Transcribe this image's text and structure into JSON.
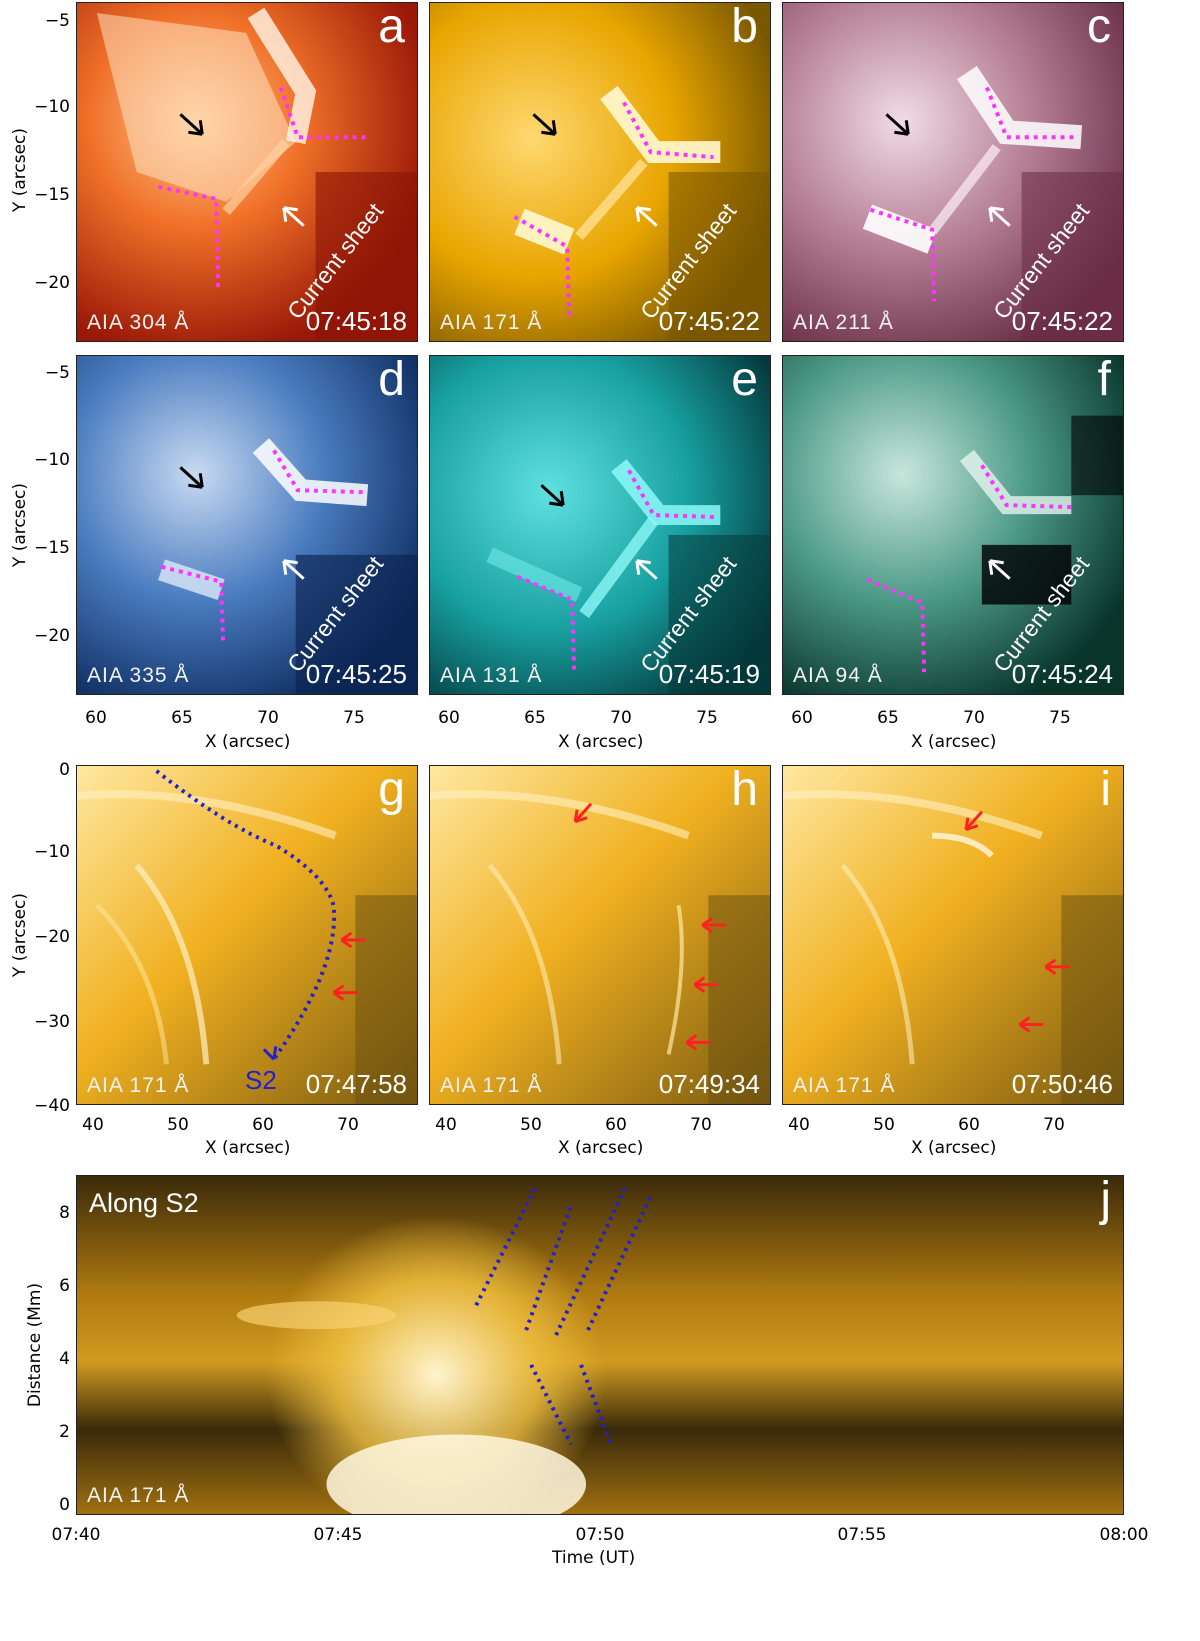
{
  "row1": {
    "ylabel": "Y (arcsec)",
    "yticks": [
      "−5",
      "−10",
      "−15",
      "−20"
    ],
    "panels": [
      {
        "letter": "a",
        "instrument": "AIA  304  Å",
        "time": "07:45:18",
        "annotation": "Current sheet",
        "base": "#c83214",
        "light": "#ffd7b0",
        "dark": "#7a1005"
      },
      {
        "letter": "b",
        "instrument": "AIA  171  Å",
        "time": "07:45:22",
        "annotation": "Current sheet",
        "base": "#d9a000",
        "light": "#ffe590",
        "dark": "#6e5000"
      },
      {
        "letter": "c",
        "instrument": "AIA  211  Å",
        "time": "07:45:22",
        "annotation": "Current sheet",
        "base": "#9c5a74",
        "light": "#f3e0e8",
        "dark": "#5a2a3c"
      }
    ]
  },
  "row2": {
    "ylabel": "Y (arcsec)",
    "yticks": [
      "−5",
      "−10",
      "−15",
      "−20"
    ],
    "xlabel": "X (arcsec)",
    "xticks": [
      "60",
      "65",
      "70",
      "75"
    ],
    "panels": [
      {
        "letter": "d",
        "instrument": "AIA  335  Å",
        "time": "07:45:25",
        "annotation": "Current sheet",
        "base": "#2a5ca8",
        "light": "#dce8f8",
        "dark": "#0a2450"
      },
      {
        "letter": "e",
        "instrument": "AIA  131  Å",
        "time": "07:45:19",
        "annotation": "Current sheet",
        "base": "#1aa6a6",
        "light": "#9af5f5",
        "dark": "#053c3c"
      },
      {
        "letter": "f",
        "instrument": "AIA  94  Å",
        "time": "07:45:24",
        "annotation": "Current sheet",
        "base": "#3c8c78",
        "light": "#d6efe6",
        "dark": "#02201a"
      }
    ]
  },
  "row3": {
    "ylabel": "Y (arcsec)",
    "yticks": [
      "0",
      "−10",
      "−20",
      "−30",
      "−40"
    ],
    "xlabel": "X (arcsec)",
    "xticks": [
      "40",
      "50",
      "60",
      "70"
    ],
    "slit_label": "S2",
    "panels": [
      {
        "letter": "g",
        "instrument": "AIA  171  Å",
        "time": "07:47:58"
      },
      {
        "letter": "h",
        "instrument": "AIA  171  Å",
        "time": "07:49:34"
      },
      {
        "letter": "i",
        "instrument": "AIA  171  Å",
        "time": "07:50:46"
      }
    ]
  },
  "row4": {
    "letter": "j",
    "title": "Along S2",
    "instrument": "AIA  171  Å",
    "ylabel": "Distance (Mm)",
    "yticks": [
      "0",
      "2",
      "4",
      "6",
      "8"
    ],
    "xlabel": "Time (UT)",
    "xticks": [
      "07:40",
      "07:45",
      "07:50",
      "07:55",
      "08:00"
    ]
  },
  "colors": {
    "magenta_dots": "#ff33ff",
    "blue_dots": "#2222cc",
    "red_arrow": "#ff2020"
  }
}
